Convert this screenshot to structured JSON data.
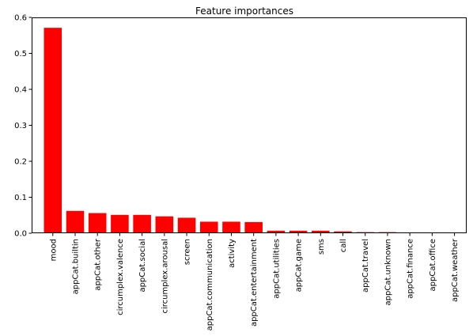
{
  "chart_data": {
    "type": "bar",
    "title": "Feature importances",
    "xlabel": "",
    "ylabel": "",
    "categories": [
      "mood",
      "appCat.builtin",
      "appCat.other",
      "circumplex.valence",
      "appCat.social",
      "circumplex.arousal",
      "screen",
      "appCat.communication",
      "activity",
      "appCat.entertainment",
      "appCat.utilities",
      "appCat.game",
      "sms",
      "call",
      "appCat.travel",
      "appCat.unknown",
      "appCat.finance",
      "appCat.office",
      "appCat.weather"
    ],
    "values": [
      0.571,
      0.062,
      0.056,
      0.051,
      0.051,
      0.047,
      0.043,
      0.032,
      0.032,
      0.031,
      0.007,
      0.007,
      0.007,
      0.005,
      0.003,
      0.003,
      0.002,
      0.002,
      0.0005
    ],
    "ylim": [
      0,
      0.6
    ],
    "yticks": [
      "0.0",
      "0.1",
      "0.2",
      "0.3",
      "0.4",
      "0.5",
      "0.6"
    ],
    "ytick_values": [
      0,
      0.1,
      0.2,
      0.3,
      0.4,
      0.5,
      0.6
    ],
    "grid": false,
    "legend": "none",
    "bar_color": "#ff0000"
  }
}
